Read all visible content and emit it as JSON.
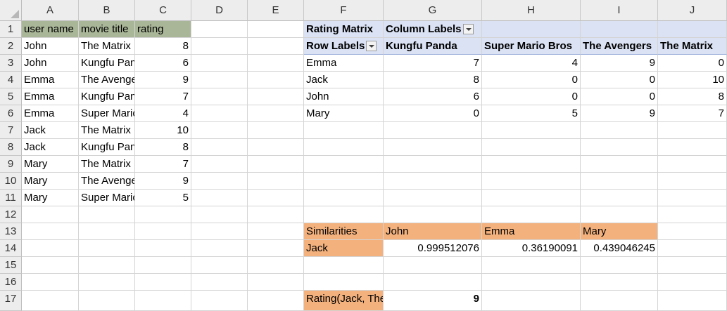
{
  "columns": [
    "A",
    "B",
    "C",
    "D",
    "E",
    "F",
    "G",
    "H",
    "I",
    "J"
  ],
  "rows": [
    "1",
    "2",
    "3",
    "4",
    "5",
    "6",
    "7",
    "8",
    "9",
    "10",
    "11",
    "12",
    "13",
    "14",
    "15",
    "16",
    "17"
  ],
  "ratings_table": {
    "headers": [
      "user name",
      "movie title",
      "rating"
    ],
    "rows": [
      [
        "John",
        "The Matrix",
        "8"
      ],
      [
        "John",
        "Kungfu Panda",
        "6"
      ],
      [
        "Emma",
        "The Avengers",
        "9"
      ],
      [
        "Emma",
        "Kungfu Panda",
        "7"
      ],
      [
        "Emma",
        "Super Mario Bros",
        "4"
      ],
      [
        "Jack",
        "The Matrix",
        "10"
      ],
      [
        "Jack",
        "Kungfu Panda",
        "8"
      ],
      [
        "Mary",
        "The Matrix",
        "7"
      ],
      [
        "Mary",
        "The Avengers",
        "9"
      ],
      [
        "Mary",
        "Super Mario Bros",
        "5"
      ]
    ]
  },
  "pivot": {
    "title": "Rating Matrix",
    "column_labels": "Column Labels",
    "row_labels": "Row Labels",
    "columns": [
      "Kungfu Panda",
      "Super Mario Bros",
      "The Avengers",
      "The Matrix"
    ],
    "rows": [
      {
        "label": "Emma",
        "values": [
          "7",
          "4",
          "9",
          "0"
        ]
      },
      {
        "label": "Jack",
        "values": [
          "8",
          "0",
          "0",
          "10"
        ]
      },
      {
        "label": "John",
        "values": [
          "6",
          "0",
          "0",
          "8"
        ]
      },
      {
        "label": "Mary",
        "values": [
          "0",
          "5",
          "9",
          "7"
        ]
      }
    ]
  },
  "similarities": {
    "label": "Similarities",
    "users": [
      "John",
      "Emma",
      "Mary"
    ],
    "row_label": "Jack",
    "values": [
      "0.999512076",
      "0.36190091",
      "0.439046245"
    ]
  },
  "prediction": {
    "label": "Rating(Jack, The Avengers)",
    "value": "9"
  },
  "colors": {
    "header_green": "#a9b697",
    "pivot_blue": "#dae2f4",
    "similarity_orange": "#f3b17d"
  }
}
